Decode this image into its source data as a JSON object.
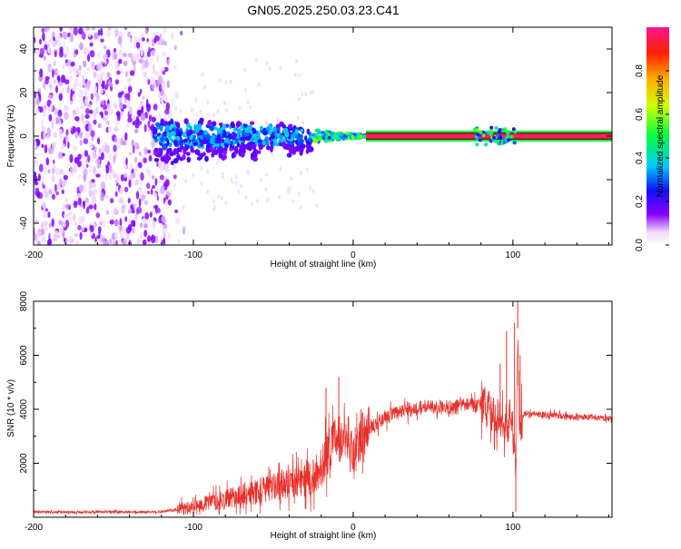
{
  "title": "GN05.2025.250.03.23.C41",
  "chart_data": [
    {
      "type": "heatmap",
      "name": "spectrogram",
      "title": "GN05.2025.250.03.23.C41",
      "xlabel": "Height of straight line (km)",
      "ylabel": "Frequency (Hz)",
      "xlim": [
        -200,
        162
      ],
      "ylim": [
        -50,
        50
      ],
      "xticks": [
        -200,
        -100,
        0,
        100
      ],
      "xtick_labels": [
        "-200",
        "-100",
        "0",
        "100"
      ],
      "yticks": [
        40,
        20,
        0,
        -20,
        -40
      ],
      "ytick_labels": [
        "40",
        "20",
        "0",
        "-20",
        "-40"
      ],
      "colorbar": {
        "label": "Normalized spectral amplitude",
        "range": [
          0,
          1
        ],
        "ticks": [
          0.0,
          0.2,
          0.4,
          0.6,
          0.8
        ],
        "tick_labels": [
          "0.0",
          "0.2",
          "0.4",
          "0.6",
          "0.8"
        ],
        "colormap": "rainbow"
      },
      "features": [
        {
          "desc": "broadband noise",
          "x_range": [
            -200,
            -115
          ],
          "amplitude": 0.05
        },
        {
          "desc": "scattered signal",
          "x_range": [
            -125,
            -25
          ],
          "f_spread_hz": 12,
          "amplitude": 0.3
        },
        {
          "desc": "converging signal",
          "x_range": [
            -25,
            8
          ],
          "amplitude": 0.45
        },
        {
          "desc": "steady tone at 0 Hz",
          "x_range": [
            8,
            162
          ],
          "f_hz": 0,
          "amplitude": 1.0
        },
        {
          "desc": "disturbance",
          "x_range": [
            75,
            102
          ],
          "amplitude": 0.5
        }
      ]
    },
    {
      "type": "line",
      "name": "snr",
      "xlabel": "Height of straight line (km)",
      "ylabel": "SNR (10 * v/v)",
      "xlim": [
        -200,
        162
      ],
      "ylim": [
        0,
        8000
      ],
      "xticks": [
        -200,
        -100,
        0,
        100
      ],
      "xtick_labels": [
        "-200",
        "-100",
        "0",
        "100"
      ],
      "yticks": [
        2000,
        4000,
        6000,
        8000
      ],
      "ytick_labels": [
        "2000",
        "4000",
        "6000",
        "8000"
      ],
      "color": "#e8302a",
      "x": [
        -200,
        -180,
        -160,
        -140,
        -120,
        -100,
        -90,
        -80,
        -70,
        -60,
        -50,
        -40,
        -30,
        -22,
        -18,
        -15,
        -12,
        -8,
        -5,
        -2,
        0,
        3,
        6,
        10,
        15,
        20,
        25,
        30,
        40,
        50,
        60,
        70,
        80,
        85,
        90,
        93,
        95,
        97,
        98,
        100,
        102,
        103,
        104,
        105,
        107,
        110,
        120,
        130,
        140,
        150,
        162
      ],
      "y": [
        200,
        180,
        200,
        190,
        200,
        400,
        550,
        650,
        800,
        950,
        1150,
        1300,
        1400,
        1600,
        2200,
        2600,
        2900,
        2900,
        2700,
        2500,
        2600,
        2800,
        3100,
        3300,
        3500,
        3700,
        3800,
        3900,
        4050,
        4100,
        4050,
        4150,
        4100,
        4000,
        3700,
        3500,
        3600,
        3400,
        3800,
        3200,
        2000,
        7000,
        3200,
        3500,
        3800,
        3850,
        3800,
        3750,
        3700,
        3700,
        3650
      ],
      "spikes": [
        {
          "x": -17,
          "y": 4800
        },
        {
          "x": -9,
          "y": 5200
        },
        {
          "x": 5,
          "y": 4000
        },
        {
          "x": 92,
          "y": 5700
        },
        {
          "x": 96,
          "y": 6900
        },
        {
          "x": 101,
          "y": 7200
        },
        {
          "x": 101.8,
          "y": 200
        },
        {
          "x": 103,
          "y": 8000
        },
        {
          "x": 104.5,
          "y": 6000
        }
      ]
    }
  ]
}
